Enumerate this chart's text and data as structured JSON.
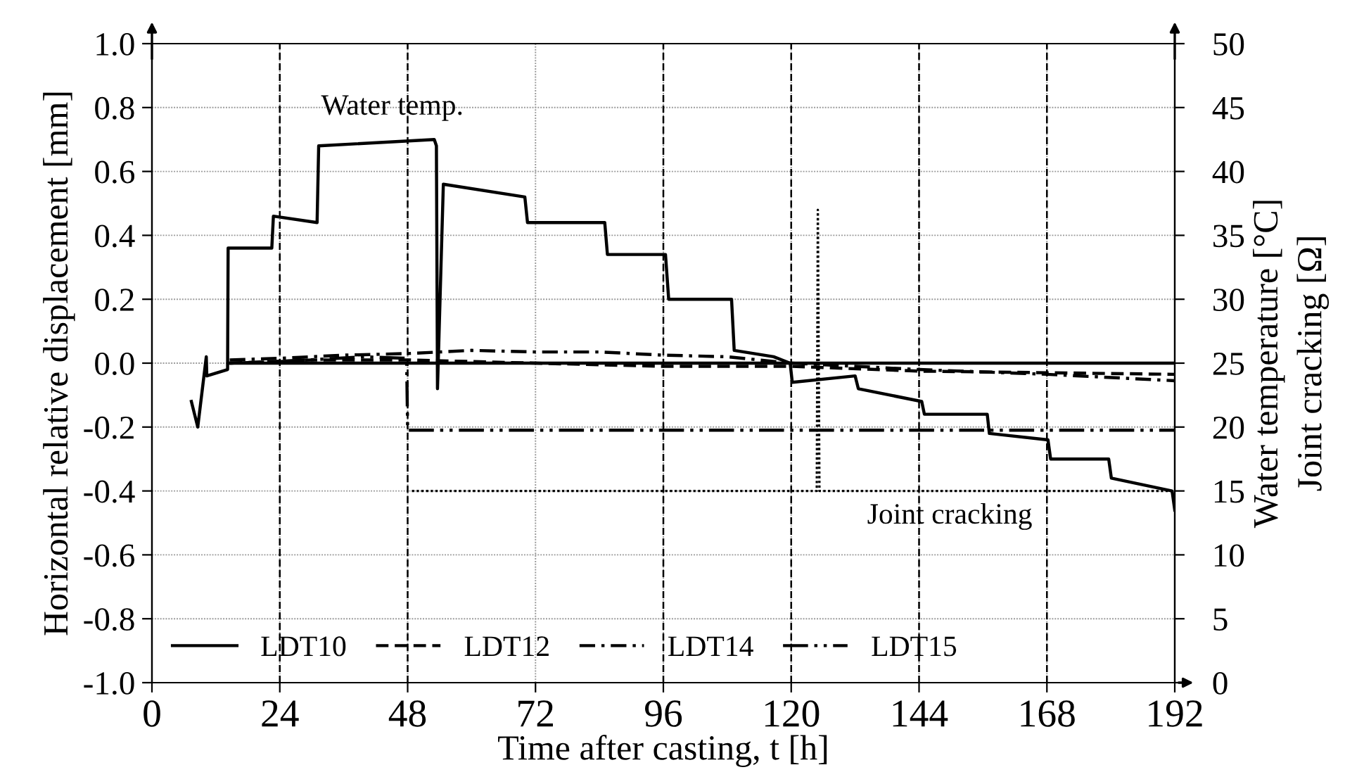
{
  "chart_data": {
    "type": "line",
    "xlabel": "Time after casting, t [h]",
    "ylabel": "Horizontal relative displacement [mm]",
    "y2label": "Water temperature [°C]",
    "y3label": "Joint cracking [Ω]",
    "xlim": [
      0,
      192
    ],
    "xticks": [
      0,
      24,
      48,
      72,
      96,
      120,
      144,
      168,
      192
    ],
    "ylim": [
      -1.0,
      1.0
    ],
    "yticks": [
      {
        "value": -1.0,
        "label": "-1.0"
      },
      {
        "value": -0.8,
        "label": "-0.8"
      },
      {
        "value": -0.6,
        "label": "-0.6"
      },
      {
        "value": -0.4,
        "label": "-0.4"
      },
      {
        "value": -0.2,
        "label": "-0.2"
      },
      {
        "value": 0.0,
        "label": "0.0"
      },
      {
        "value": 0.2,
        "label": "0.2"
      },
      {
        "value": 0.4,
        "label": "0.4"
      },
      {
        "value": 0.6,
        "label": "0.6"
      },
      {
        "value": 0.8,
        "label": "0.8"
      },
      {
        "value": 1.0,
        "label": "1.0"
      }
    ],
    "y2lim": [
      0,
      50
    ],
    "y2ticks": [
      0,
      5,
      10,
      15,
      20,
      25,
      30,
      35,
      40,
      45,
      50
    ],
    "grid": true,
    "legend": "bottom left",
    "series": [
      {
        "name": "LDT10",
        "color": "#000000",
        "line_style": "solid",
        "x": [
          14.6,
          192
        ],
        "values": [
          0.0,
          0.0
        ]
      },
      {
        "name": "LDT12",
        "color": "#000000",
        "line_style": "dashed",
        "x": [
          14.6,
          30,
          48,
          72,
          96,
          120,
          144,
          168,
          192
        ],
        "values": [
          0.0,
          0.01,
          0.01,
          0.0,
          -0.01,
          -0.01,
          -0.025,
          -0.03,
          -0.035
        ]
      },
      {
        "name": "LDT14",
        "color": "#000000",
        "line_style": "dashdot",
        "x": [
          14.6,
          24,
          36,
          48,
          60,
          72,
          84,
          96,
          108,
          120,
          132,
          144,
          168,
          192
        ],
        "values": [
          0.01,
          0.015,
          0.025,
          0.03,
          0.04,
          0.035,
          0.035,
          0.025,
          0.02,
          0.0,
          -0.01,
          -0.02,
          -0.035,
          -0.055
        ]
      },
      {
        "name": "LDT15",
        "color": "#000000",
        "line_style": "dashdotdot",
        "x": [
          14.6,
          24,
          40,
          47.8,
          48,
          192
        ],
        "values": [
          0.0,
          0.005,
          0.02,
          0.015,
          -0.21,
          -0.21
        ]
      },
      {
        "color": "#000000",
        "line_style": "solid",
        "axis": "y2",
        "x": [
          7.4,
          8.6,
          10.2,
          10.3,
          14.2,
          14.3,
          22.5,
          22.8,
          31.0,
          31.3,
          53.0,
          53.4,
          53.6,
          54.7,
          70.0,
          70.5,
          85.0,
          85.5,
          96.4,
          97.0,
          108.8,
          109.3,
          116.7,
          119.8,
          120.2,
          132.0,
          132.6,
          144.5,
          145.0,
          156.8,
          157.2,
          168.2,
          168.7,
          179.6,
          180.1,
          191.5,
          192
        ],
        "values": [
          22.0,
          20.0,
          25.5,
          24.0,
          24.5,
          34.0,
          34.0,
          36.5,
          36.0,
          42.0,
          42.5,
          42.0,
          23.0,
          39.0,
          38.0,
          36.0,
          36.0,
          33.5,
          33.5,
          30.0,
          30.0,
          26.0,
          25.5,
          25.0,
          23.5,
          24.0,
          23.0,
          22.0,
          21.0,
          21.0,
          19.5,
          19.0,
          17.5,
          17.5,
          16.0,
          15.0,
          13.5
        ]
      },
      {
        "color": "#000000",
        "line_style": "dotted",
        "axis": "y2",
        "x": [
          48.8,
          124.8,
          125.0,
          125.3,
          192
        ],
        "values": [
          15,
          15,
          37,
          15,
          15
        ]
      }
    ],
    "ref_lines": [
      {
        "axis": "x",
        "value": 24,
        "line_style": "dashed"
      },
      {
        "axis": "x",
        "value": 48,
        "line_style": "dashed"
      },
      {
        "axis": "x",
        "value": 96,
        "line_style": "dashed"
      },
      {
        "axis": "x",
        "value": 120,
        "line_style": "dashed"
      },
      {
        "axis": "x",
        "value": 144,
        "line_style": "dashed"
      },
      {
        "axis": "x",
        "value": 168,
        "line_style": "dashed"
      }
    ],
    "annotations": [
      "Water temp.",
      "Joint cracking"
    ]
  }
}
